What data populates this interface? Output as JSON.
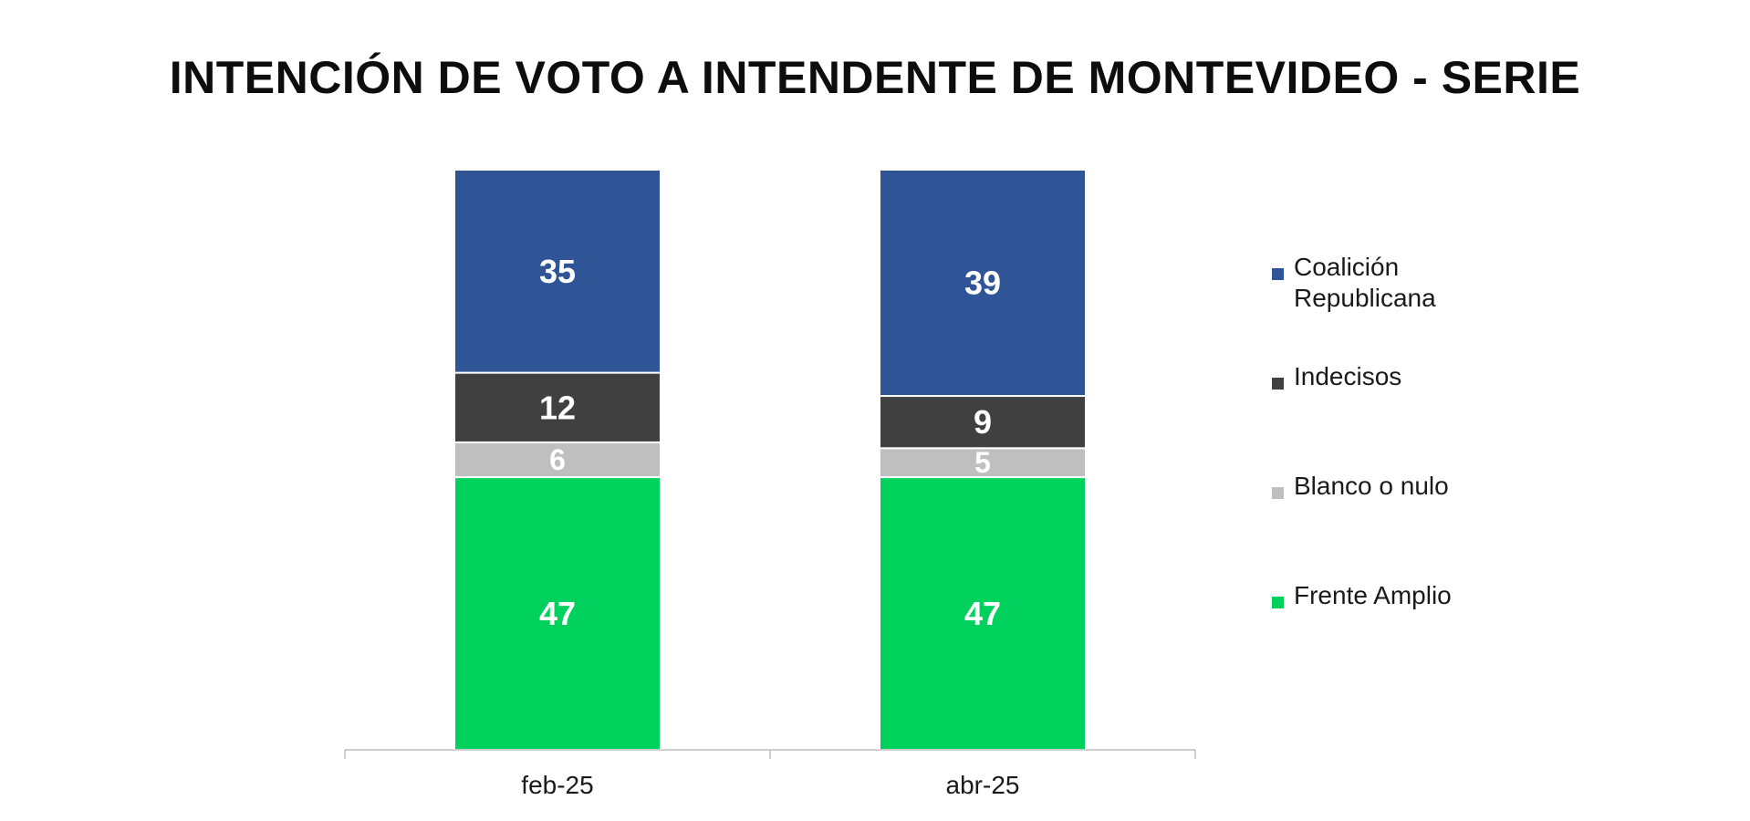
{
  "title": "INTENCIÓN DE VOTO A INTENDENTE DE MONTEVIDEO - SERIE",
  "chart_data": {
    "type": "bar",
    "stacked": true,
    "categories": [
      "feb-25",
      "abr-25"
    ],
    "series": [
      {
        "name": "Frente Amplio",
        "color": "#00d15c",
        "values": [
          47,
          47
        ]
      },
      {
        "name": "Blanco o nulo",
        "color": "#bfbfbf",
        "values": [
          6,
          5
        ]
      },
      {
        "name": "Indecisos",
        "color": "#404040",
        "values": [
          12,
          9
        ]
      },
      {
        "name": "Coalición Republicana",
        "color": "#2f5597",
        "values": [
          35,
          39
        ]
      }
    ],
    "ylim": [
      0,
      100
    ],
    "grid": false,
    "data_labels": true,
    "legend_position": "right"
  },
  "legend": {
    "items": [
      {
        "label": "Coalición Republicana",
        "color": "#2f5597"
      },
      {
        "label": "Indecisos",
        "color": "#404040"
      },
      {
        "label": "Blanco o nulo",
        "color": "#bfbfbf"
      },
      {
        "label": "Frente Amplio",
        "color": "#00d15c"
      }
    ]
  }
}
